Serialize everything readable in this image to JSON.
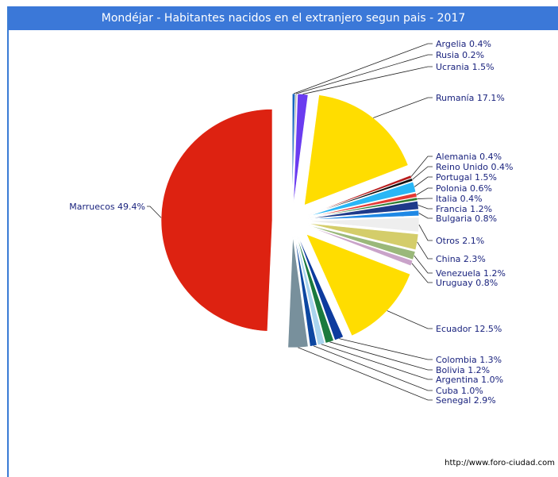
{
  "chart_data": {
    "type": "pie",
    "title": "Mondéjar - Habitantes nacidos en el extranjero segun pais - 2017",
    "slices": [
      {
        "label": "Argelia 0.4%",
        "name": "Argelia",
        "value": 0.4,
        "color": "#1565c0"
      },
      {
        "label": "Rusia 0.2%",
        "name": "Rusia",
        "value": 0.2,
        "color": "#9e9e9e"
      },
      {
        "label": "Ucrania 1.5%",
        "name": "Ucrania",
        "value": 1.5,
        "color": "#6a3cf0"
      },
      {
        "label": "Rumanía 17.1%",
        "name": "Rumanía",
        "value": 17.1,
        "color": "#ffdd00"
      },
      {
        "label": "Alemania 0.4%",
        "name": "Alemania",
        "value": 0.4,
        "color": "#b71c1c"
      },
      {
        "label": "Reino Unido 0.4%",
        "name": "Reino Unido",
        "value": 0.4,
        "color": "#111111"
      },
      {
        "label": "Portugal 1.5%",
        "name": "Portugal",
        "value": 1.5,
        "color": "#29b6f6"
      },
      {
        "label": "Polonia 0.6%",
        "name": "Polonia",
        "value": 0.6,
        "color": "#e53935"
      },
      {
        "label": "Italia 0.4%",
        "name": "Italia",
        "value": 0.4,
        "color": "#2e7d32"
      },
      {
        "label": "Francia 1.2%",
        "name": "Francia",
        "value": 1.2,
        "color": "#1e3a8a"
      },
      {
        "label": "Bulgaria 0.8%",
        "name": "Bulgaria",
        "value": 0.8,
        "color": "#1e88e5"
      },
      {
        "label": "Otros 2.1%",
        "name": "Otros",
        "value": 2.1,
        "color": "#eeeeee"
      },
      {
        "label": "China 2.3%",
        "name": "China",
        "value": 2.3,
        "color": "#d4cd6a"
      },
      {
        "label": "Venezuela 1.2%",
        "name": "Venezuela",
        "value": 1.2,
        "color": "#9ab87a"
      },
      {
        "label": "Uruguay 0.8%",
        "name": "Uruguay",
        "value": 0.8,
        "color": "#c9a3c9"
      },
      {
        "label": "Ecuador 12.5%",
        "name": "Ecuador",
        "value": 12.5,
        "color": "#ffdd00"
      },
      {
        "label": "Colombia 1.3%",
        "name": "Colombia",
        "value": 1.3,
        "color": "#0d3b9e"
      },
      {
        "label": "Bolivia 1.2%",
        "name": "Bolivia",
        "value": 1.2,
        "color": "#1b7a3e"
      },
      {
        "label": "Argentina 1.0%",
        "name": "Argentina",
        "value": 1.0,
        "color": "#a9d4ee"
      },
      {
        "label": "Cuba 1.0%",
        "name": "Cuba",
        "value": 1.0,
        "color": "#0d47a1"
      },
      {
        "label": "Senegal 2.9%",
        "name": "Senegal",
        "value": 2.9,
        "color": "#78909c"
      },
      {
        "label": "Marruecos 49.4%",
        "name": "Marruecos",
        "value": 49.4,
        "color": "#dd2211"
      }
    ]
  },
  "source": "http://www.foro-ciudad.com"
}
